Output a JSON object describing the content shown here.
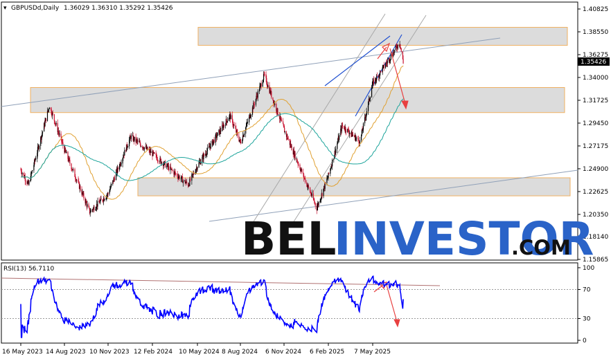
{
  "header": {
    "symbol": "GBPUSDd,Daily",
    "ohlc": "1.36029 1.36310 1.35292 1.35426"
  },
  "price_axis": {
    "ticks": [
      "1.40825",
      "1.38550",
      "1.36275",
      "1.34000",
      "1.31725",
      "1.29450",
      "1.27175",
      "1.24900",
      "1.22625",
      "1.20350",
      "1.18140",
      "1.15865"
    ],
    "current_price": "1.35426"
  },
  "rsi": {
    "label": "RSI(13) 56.7110",
    "ticks": [
      "100",
      "70",
      "30",
      "0"
    ]
  },
  "time_axis": {
    "ticks": [
      "16 May 2023",
      "14 Aug 2023",
      "10 Nov 2023",
      "12 Feb 2024",
      "10 May 2024",
      "8 Aug 2024",
      "6 Nov 2024",
      "6 Feb 2025",
      "7 May 2025"
    ]
  },
  "watermark": {
    "part1": "BEL",
    "part2": "INVESTOR",
    "part3": ".COM"
  },
  "colors": {
    "up_candle": "#000000",
    "down_candle": "#c8102e",
    "ma_fast": "#e0a030",
    "ma_slow": "#1aa39a",
    "rsi_line": "#0000ff",
    "zone_fill": "#dcdcdc",
    "zone_border": "#f0b060",
    "arrow": "#e84040",
    "channel": "#a8a8a8",
    "blue_channel": "#2050d0"
  },
  "chart_data": {
    "type": "candlestick",
    "instrument": "GBPUSD",
    "timeframe": "Daily",
    "last_bar": {
      "open": 1.36029,
      "high": 1.3631,
      "low": 1.35292,
      "close": 1.35426
    },
    "ylim": [
      1.15865,
      1.40825
    ],
    "price_anchors": [
      {
        "date": "2023-05-16",
        "price": 1.248
      },
      {
        "date": "2023-06-01",
        "price": 1.233
      },
      {
        "date": "2023-07-14",
        "price": 1.312
      },
      {
        "date": "2023-08-14",
        "price": 1.268
      },
      {
        "date": "2023-10-04",
        "price": 1.206
      },
      {
        "date": "2023-11-10",
        "price": 1.224
      },
      {
        "date": "2023-12-28",
        "price": 1.281
      },
      {
        "date": "2024-02-12",
        "price": 1.264
      },
      {
        "date": "2024-04-22",
        "price": 1.233
      },
      {
        "date": "2024-05-10",
        "price": 1.252
      },
      {
        "date": "2024-07-17",
        "price": 1.302
      },
      {
        "date": "2024-08-08",
        "price": 1.275
      },
      {
        "date": "2024-09-26",
        "price": 1.342
      },
      {
        "date": "2024-11-06",
        "price": 1.288
      },
      {
        "date": "2025-01-13",
        "price": 1.21
      },
      {
        "date": "2025-02-06",
        "price": 1.242
      },
      {
        "date": "2025-03-06",
        "price": 1.292
      },
      {
        "date": "2025-04-11",
        "price": 1.276
      },
      {
        "date": "2025-05-07",
        "price": 1.334
      },
      {
        "date": "2025-06-05",
        "price": 1.355
      },
      {
        "date": "2025-07-01",
        "price": 1.375
      },
      {
        "date": "2025-07-08",
        "price": 1.354
      }
    ],
    "resistance_zones": [
      {
        "from": 1.372,
        "to": 1.39
      },
      {
        "from": 1.305,
        "to": 1.33
      },
      {
        "from": 1.222,
        "to": 1.24
      }
    ],
    "moving_averages": [
      "fast (orange)",
      "slow (teal)"
    ],
    "rsi_period": 13,
    "rsi_last": 56.711,
    "rsi_levels": [
      70,
      30
    ],
    "rsi_ylim": [
      0,
      100
    ],
    "forecast": "downward reversal arrow from 1.368 toward 1.315"
  }
}
